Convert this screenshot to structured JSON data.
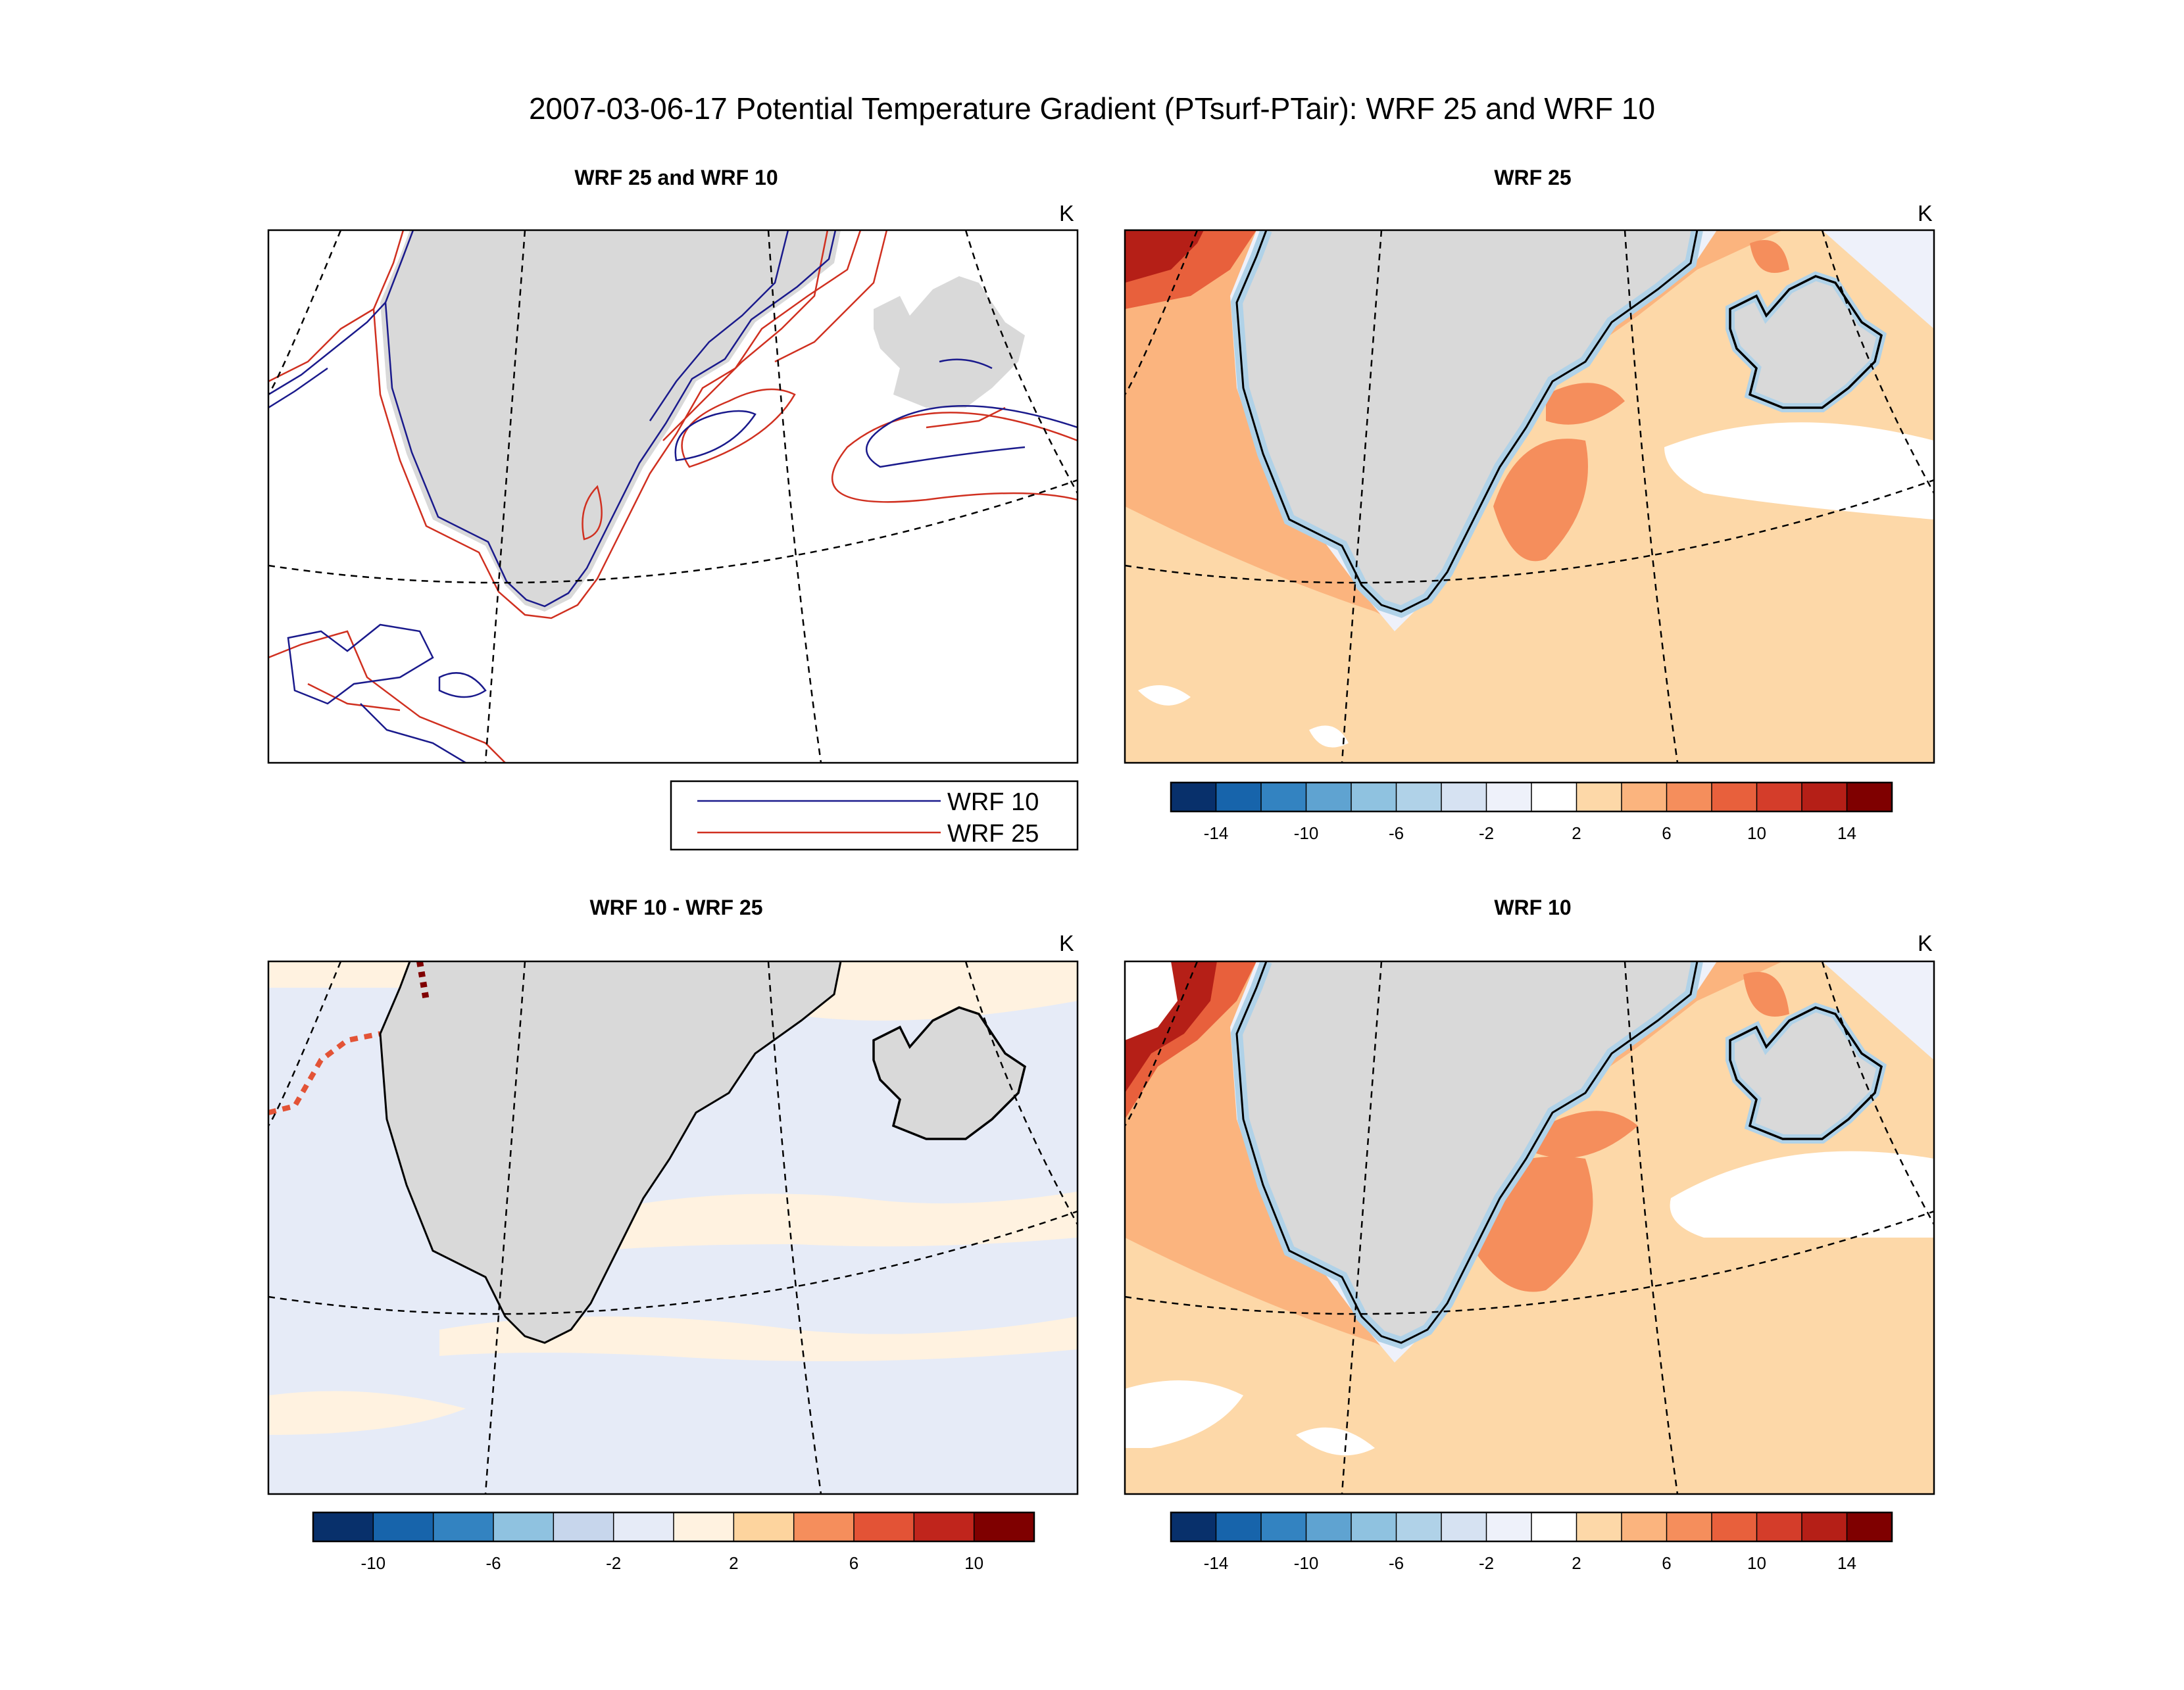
{
  "title": "2007-03-06-17 Potential Temperature Gradient (PTsurf-PTair): WRF 25 and WRF 10",
  "panels": {
    "p1": {
      "title": "WRF 25 and WRF 10",
      "unit": "K"
    },
    "p2": {
      "title": "WRF 25",
      "unit": "K"
    },
    "p3": {
      "title": "WRF 10 - WRF 25",
      "unit": "K"
    },
    "p4": {
      "title": "WRF 10",
      "unit": "K"
    }
  },
  "legend": {
    "items": [
      {
        "label": "WRF 10",
        "color": "#1a1a8c"
      },
      {
        "label": "WRF 25",
        "color": "#d03020"
      }
    ]
  },
  "colorbar_full": {
    "labels": [
      "-14",
      "-10",
      "-6",
      "-2",
      "2",
      "6",
      "10",
      "14"
    ],
    "colors": [
      "#08306b",
      "#1764ab",
      "#3383c1",
      "#5fa3d1",
      "#8fc2e0",
      "#b0d2e8",
      "#d6e2f2",
      "#eef1fa",
      "#ffffff",
      "#fdd8a8",
      "#fbb47e",
      "#f58e5c",
      "#e8603c",
      "#d43d2a",
      "#b51f17",
      "#7f0000"
    ]
  },
  "colorbar_diff": {
    "labels": [
      "-10",
      "-6",
      "-2",
      "2",
      "6",
      "10"
    ],
    "colors": [
      "#08306b",
      "#1764ab",
      "#3383c1",
      "#8fc2e0",
      "#c7d6ec",
      "#e6ebf7",
      "#fff2e0",
      "#fdd49e",
      "#f58e5c",
      "#e35336",
      "#c0251c",
      "#7f0000"
    ]
  },
  "colors": {
    "land": "#d9d9d9",
    "coast": "#000000",
    "warm_light": "#fdd8a8",
    "warm_mid": "#fbb47e",
    "warm_strong": "#f58e5c",
    "cold_light": "#d6e2f2",
    "diff_bg": "#e6ebf7"
  }
}
